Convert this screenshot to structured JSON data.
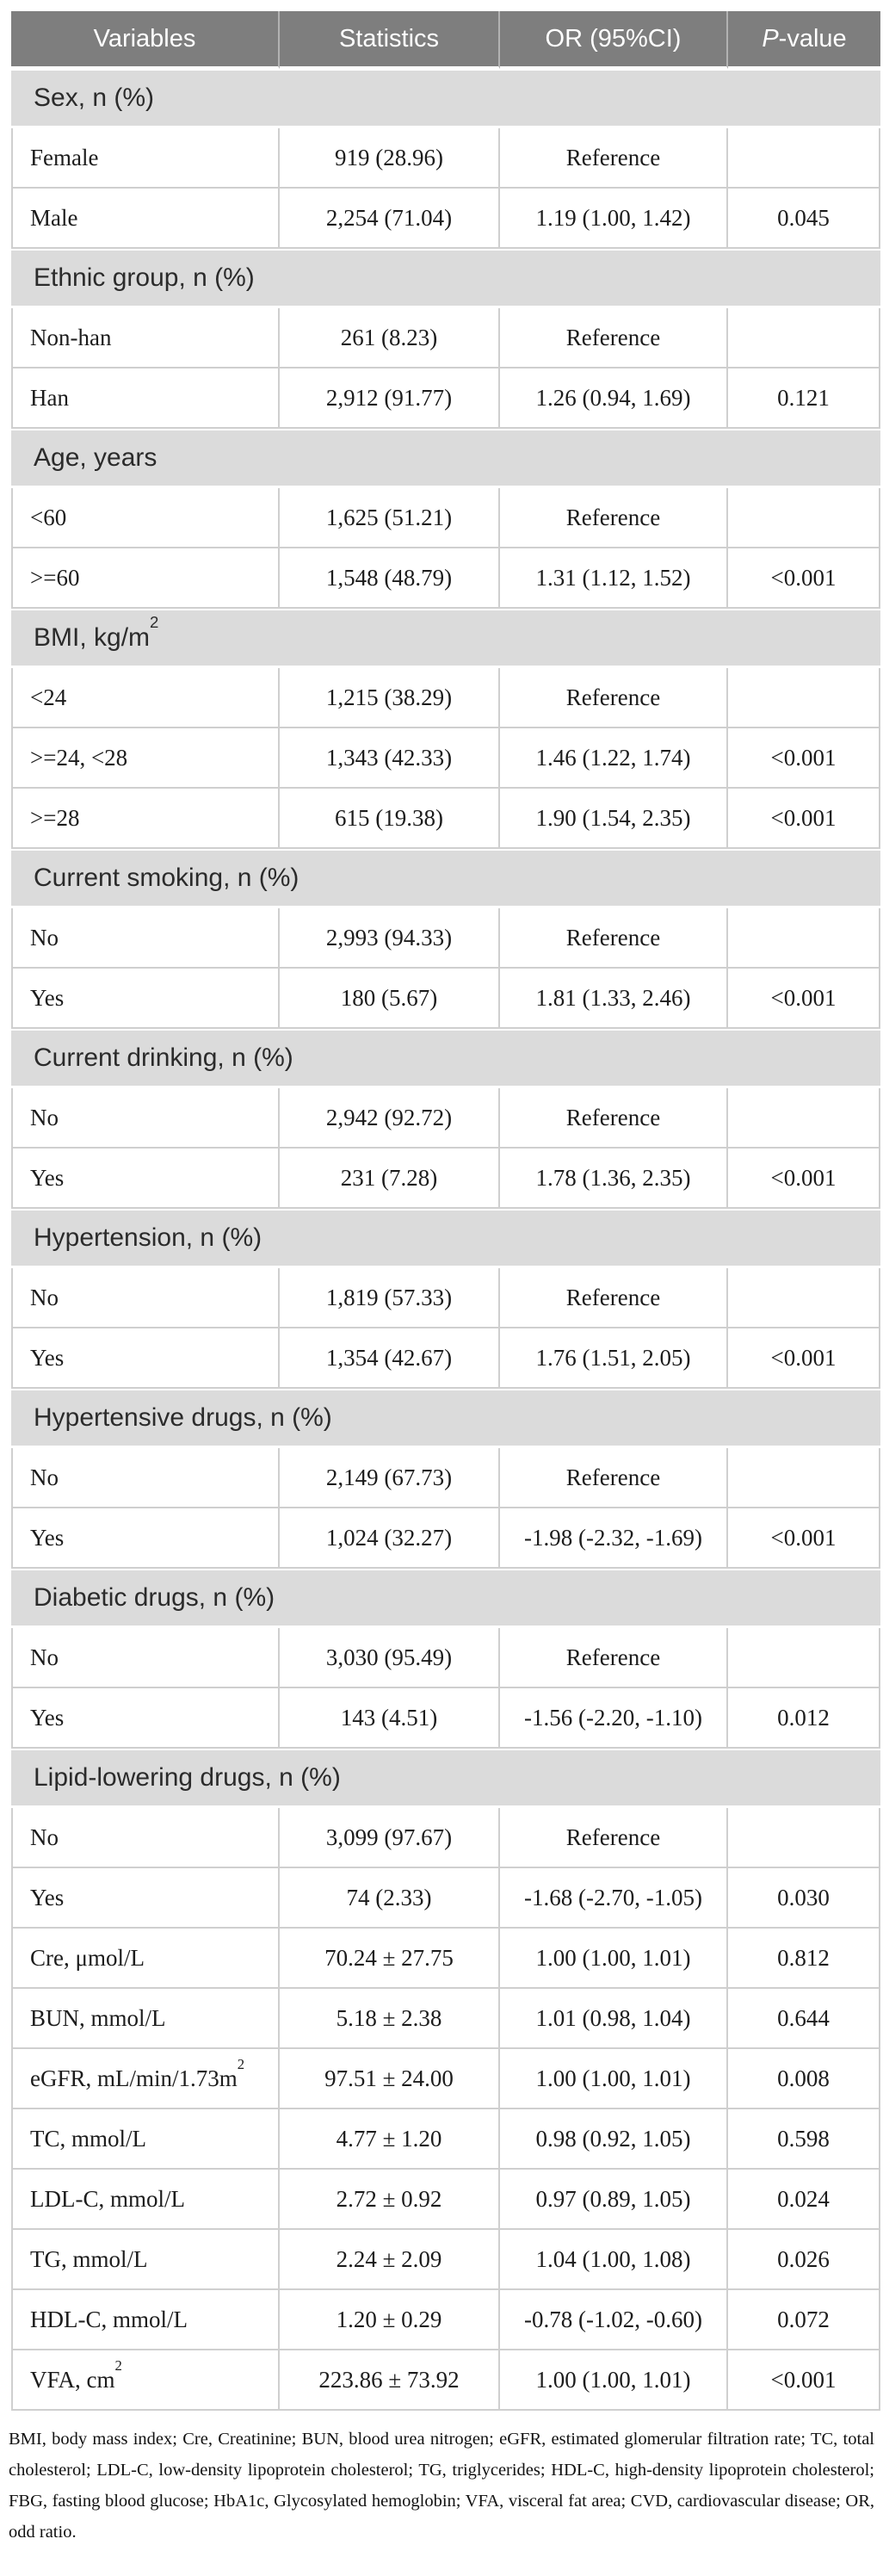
{
  "colors": {
    "page_bg": "#ffffff",
    "header_bg": "#7e7e7e",
    "header_text": "#ffffff",
    "header_divider": "#b2b2b2",
    "section_bg": "#dbdbdb",
    "section_text": "#2b2b2b",
    "body_text": "#1c1c1c",
    "grid_line": "#cfcfcf"
  },
  "table": {
    "columns": [
      {
        "label": "Variables"
      },
      {
        "label": "Statistics"
      },
      {
        "label": "OR (95%CI)"
      },
      {
        "label": "P-value",
        "italic_prefix": 1
      }
    ],
    "rows": [
      {
        "type": "section",
        "label": "Sex, n (%)"
      },
      {
        "type": "data",
        "cells": [
          "Female",
          "919 (28.96)",
          "Reference",
          ""
        ]
      },
      {
        "type": "data",
        "cells": [
          "Male",
          "2,254 (71.04)",
          "1.19 (1.00, 1.42)",
          "0.045"
        ]
      },
      {
        "type": "section",
        "label": "Ethnic group, n (%)"
      },
      {
        "type": "data",
        "cells": [
          "Non-han",
          "261 (8.23)",
          "Reference",
          ""
        ]
      },
      {
        "type": "data",
        "cells": [
          "Han",
          "2,912 (91.77)",
          "1.26 (0.94, 1.69)",
          "0.121"
        ]
      },
      {
        "type": "section",
        "label": "Age, years"
      },
      {
        "type": "data",
        "cells": [
          "<60",
          "1,625 (51.21)",
          "Reference",
          ""
        ]
      },
      {
        "type": "data",
        "cells": [
          ">=60",
          "1,548 (48.79)",
          "1.31 (1.12, 1.52)",
          "<0.001"
        ]
      },
      {
        "type": "section",
        "label": "BMI, kg/m²"
      },
      {
        "type": "data",
        "cells": [
          "<24",
          "1,215 (38.29)",
          "Reference",
          ""
        ]
      },
      {
        "type": "data",
        "cells": [
          ">=24, <28",
          "1,343 (42.33)",
          "1.46 (1.22, 1.74)",
          "<0.001"
        ]
      },
      {
        "type": "data",
        "cells": [
          ">=28",
          "615 (19.38)",
          "1.90 (1.54, 2.35)",
          "<0.001"
        ]
      },
      {
        "type": "section",
        "label": "Current smoking, n (%)"
      },
      {
        "type": "data",
        "cells": [
          "No",
          "2,993 (94.33)",
          "Reference",
          ""
        ]
      },
      {
        "type": "data",
        "cells": [
          "Yes",
          "180 (5.67)",
          "1.81 (1.33, 2.46)",
          "<0.001"
        ]
      },
      {
        "type": "section",
        "label": "Current drinking, n (%)"
      },
      {
        "type": "data",
        "cells": [
          "No",
          "2,942 (92.72)",
          "Reference",
          ""
        ]
      },
      {
        "type": "data",
        "cells": [
          "Yes",
          "231 (7.28)",
          "1.78 (1.36, 2.35)",
          "<0.001"
        ]
      },
      {
        "type": "section",
        "label": "Hypertension, n (%)"
      },
      {
        "type": "data",
        "cells": [
          "No",
          "1,819 (57.33)",
          "Reference",
          ""
        ]
      },
      {
        "type": "data",
        "cells": [
          "Yes",
          "1,354 (42.67)",
          "1.76 (1.51, 2.05)",
          "<0.001"
        ]
      },
      {
        "type": "section",
        "label": "Hypertensive drugs, n (%)"
      },
      {
        "type": "data",
        "cells": [
          "No",
          "2,149 (67.73)",
          "Reference",
          ""
        ]
      },
      {
        "type": "data",
        "cells": [
          "Yes",
          "1,024 (32.27)",
          "-1.98 (-2.32, -1.69)",
          "<0.001"
        ]
      },
      {
        "type": "section",
        "label": "Diabetic drugs, n (%)"
      },
      {
        "type": "data",
        "cells": [
          "No",
          "3,030 (95.49)",
          "Reference",
          ""
        ]
      },
      {
        "type": "data",
        "cells": [
          "Yes",
          "143 (4.51)",
          "-1.56 (-2.20, -1.10)",
          "0.012"
        ]
      },
      {
        "type": "section",
        "label": "Lipid-lowering drugs, n (%)"
      },
      {
        "type": "data",
        "cells": [
          "No",
          "3,099 (97.67)",
          "Reference",
          ""
        ]
      },
      {
        "type": "data",
        "cells": [
          "Yes",
          "74 (2.33)",
          "-1.68 (-2.70, -1.05)",
          "0.030"
        ]
      },
      {
        "type": "data",
        "cells": [
          "Cre, μmol/L",
          "70.24 ± 27.75",
          "1.00 (1.00, 1.01)",
          "0.812"
        ]
      },
      {
        "type": "data",
        "cells": [
          "BUN, mmol/L",
          "5.18 ± 2.38",
          "1.01 (0.98, 1.04)",
          "0.644"
        ]
      },
      {
        "type": "data",
        "cells": [
          "eGFR, mL/min/1.73m²",
          "97.51 ± 24.00",
          "1.00 (1.00, 1.01)",
          "0.008"
        ]
      },
      {
        "type": "data",
        "cells": [
          "TC, mmol/L",
          "4.77 ± 1.20",
          "0.98 (0.92, 1.05)",
          "0.598"
        ]
      },
      {
        "type": "data",
        "cells": [
          "LDL-C, mmol/L",
          "2.72 ± 0.92",
          "0.97 (0.89, 1.05)",
          "0.024"
        ]
      },
      {
        "type": "data",
        "cells": [
          "TG, mmol/L",
          "2.24 ± 2.09",
          "1.04 (1.00, 1.08)",
          "0.026"
        ]
      },
      {
        "type": "data",
        "cells": [
          "HDL-C, mmol/L",
          "1.20 ± 0.29",
          "-0.78 (-1.02, -0.60)",
          "0.072"
        ]
      },
      {
        "type": "data",
        "cells": [
          "VFA, cm²",
          "223.86 ± 73.92",
          "1.00 (1.00, 1.01)",
          "<0.001"
        ]
      }
    ],
    "cell_names": [
      "cell-variable",
      "cell-statistics",
      "cell-or-ci",
      "cell-p-value"
    ]
  },
  "footnote": "BMI, body mass index; Cre, Creatinine; BUN, blood urea nitrogen; eGFR, estimated glomerular filtration rate; TC, total cholesterol; LDL-C, low-density lipoprotein cholesterol; TG, triglycerides; HDL-C, high-density lipoprotein cholesterol; FBG, fasting blood glucose; HbA1c, Glycosylated hemoglobin; VFA, visceral fat area; CVD, cardiovascular disease; OR, odd ratio."
}
